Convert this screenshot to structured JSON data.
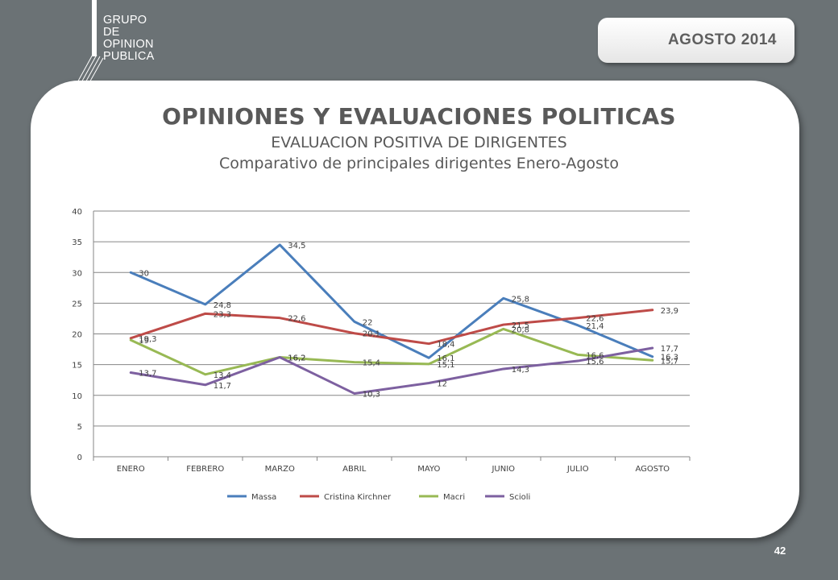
{
  "header": {
    "logo_lines": [
      "GRUPO",
      "DE",
      "OPINION",
      "PUBLICA"
    ],
    "date_badge": "AGOSTO  2014",
    "page_number": "42"
  },
  "titles": {
    "main": "OPINIONES Y EVALUACIONES POLITICAS",
    "sub1": "EVALUACION POSITIVA DE DIRIGENTES",
    "sub2": "Comparativo de principales dirigentes Enero-Agosto"
  },
  "colors": {
    "Massa": "#4a7ebb",
    "Cristina Kirchner": "#be4b48",
    "Macri": "#98b954",
    "Scioli": "#7d60a0",
    "grid": "#868686",
    "label": "#404040"
  },
  "chart_data": {
    "type": "line",
    "categories": [
      "ENERO",
      "FEBRERO",
      "MARZO",
      "ABRIL",
      "MAYO",
      "JUNIO",
      "JULIO",
      "AGOSTO"
    ],
    "series": [
      {
        "name": "Massa",
        "values": [
          30,
          24.8,
          34.5,
          22,
          16.1,
          25.8,
          21.4,
          16.3
        ],
        "labels": [
          "30",
          "24,8",
          "34,5",
          "22",
          "16,1",
          "25,8",
          "21,4",
          "16,3"
        ]
      },
      {
        "name": "Cristina Kirchner",
        "values": [
          19.3,
          23.3,
          22.6,
          20.1,
          18.4,
          21.5,
          22.6,
          23.9
        ],
        "labels": [
          "19,3",
          "23,3",
          "22,6",
          "20,1",
          "18,4",
          "21,5",
          "22,6",
          "23,9"
        ]
      },
      {
        "name": "Macri",
        "values": [
          19,
          13.4,
          16.2,
          15.4,
          15.1,
          20.8,
          16.6,
          15.7
        ],
        "labels": [
          "19",
          "13,4",
          "16,2",
          "15,4",
          "15,1",
          "20,8",
          "16,6",
          "15,7"
        ]
      },
      {
        "name": "Scioli",
        "values": [
          13.7,
          11.7,
          16.2,
          10.3,
          12,
          14.3,
          15.6,
          17.7
        ],
        "labels": [
          "13,7",
          "11,7",
          "16,2",
          "10,3",
          "12",
          "14,3",
          "15,6",
          "17,7"
        ]
      }
    ],
    "ylim": [
      0,
      40
    ],
    "yticks": [
      0,
      5,
      10,
      15,
      20,
      25,
      30,
      35,
      40
    ],
    "grid": true,
    "legend": "bottom"
  }
}
